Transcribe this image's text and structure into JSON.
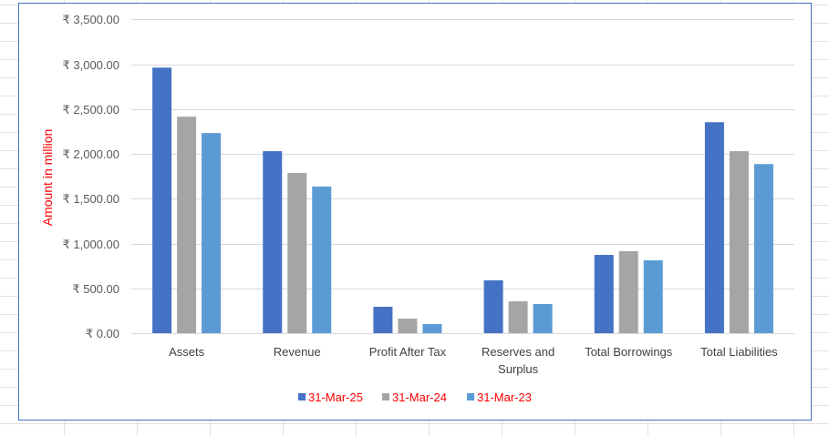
{
  "chart_data": {
    "type": "bar",
    "title": "",
    "xlabel": "",
    "ylabel": "Amount in million",
    "ylim": [
      0,
      3500
    ],
    "yticks": [
      "₹ 0.00",
      "₹ 500.00",
      "₹ 1,000.00",
      "₹ 1,500.00",
      "₹ 2,000.00",
      "₹ 2,500.00",
      "₹ 3,000.00",
      "₹ 3,500.00"
    ],
    "grid": true,
    "legend_position": "bottom",
    "categories": [
      [
        "Assets"
      ],
      [
        "Revenue"
      ],
      [
        "Profit After Tax"
      ],
      [
        "Reserves and",
        "Surplus"
      ],
      [
        "Total Borrowings"
      ],
      [
        "Total Liabilities"
      ]
    ],
    "series": [
      {
        "name": "31-Mar-25",
        "color": "#4472C4",
        "values": [
          2962,
          2030,
          294,
          589,
          873,
          2353
        ]
      },
      {
        "name": "31-Mar-24",
        "color": "#A5A5A5",
        "values": [
          2415,
          1787,
          162,
          355,
          914,
          2030
        ]
      },
      {
        "name": "31-Mar-23",
        "color": "#5B9BD5",
        "values": [
          2232,
          1635,
          102,
          325,
          812,
          1886
        ]
      }
    ],
    "colors": {
      "ylabel": "#FF0000",
      "legend_text": "#FF0000",
      "tick_text": "#595959",
      "gridline": "#D9D9D9",
      "border": "#4472C4"
    }
  }
}
